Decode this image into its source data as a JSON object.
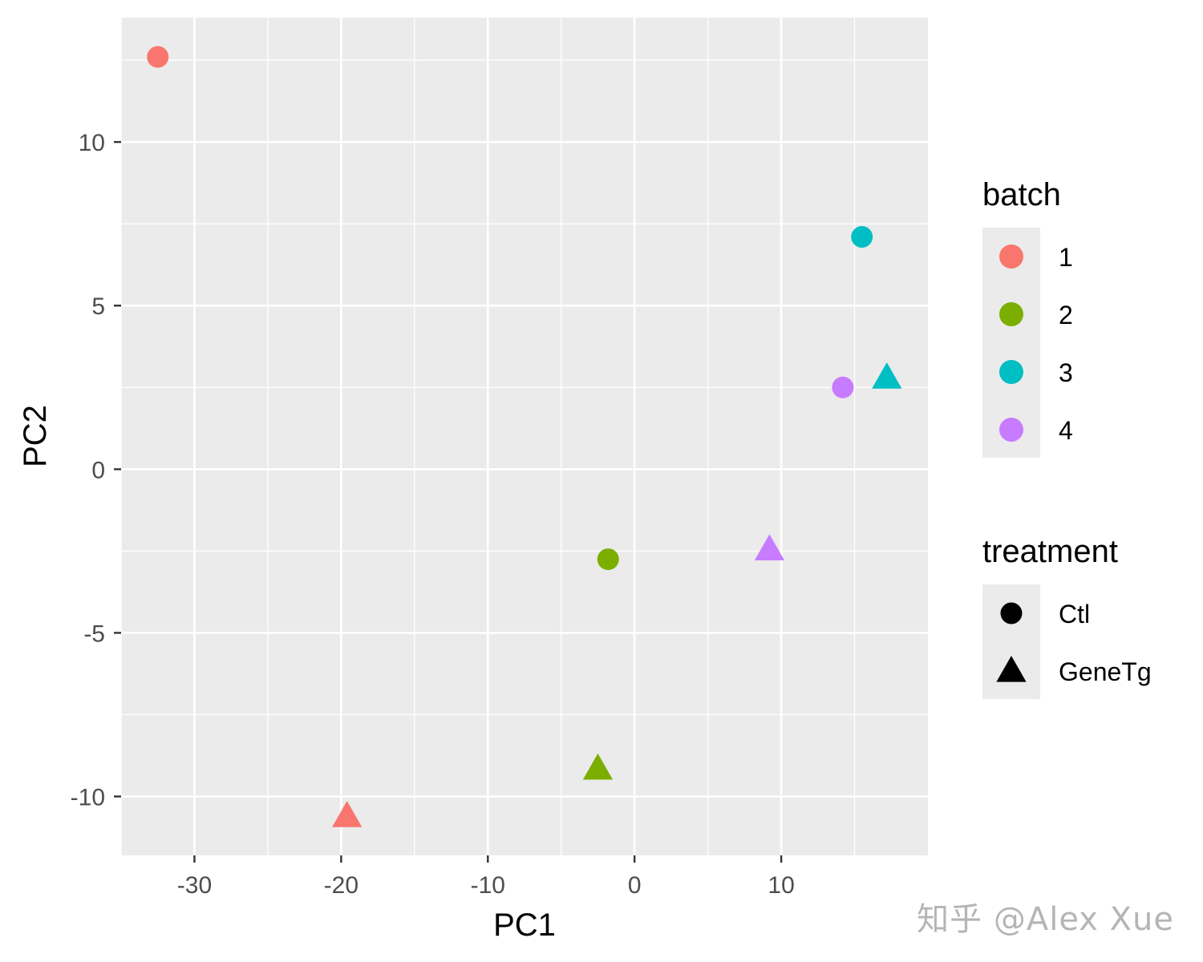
{
  "watermark": "知乎 @Alex Xue",
  "chart_data": {
    "type": "scatter",
    "xlabel": "PC1",
    "ylabel": "PC2",
    "xlim": [
      -35,
      20
    ],
    "ylim": [
      -11.8,
      13.8
    ],
    "x_ticks": [
      -30,
      -20,
      -10,
      0,
      10
    ],
    "y_ticks": [
      -10,
      -5,
      0,
      5,
      10
    ],
    "grid": true,
    "background": "#EBEBEB",
    "points": [
      {
        "x": -32.5,
        "y": 12.6,
        "batch": "1",
        "treatment": "Ctl"
      },
      {
        "x": -19.6,
        "y": -10.6,
        "batch": "1",
        "treatment": "GeneTg"
      },
      {
        "x": -1.8,
        "y": -2.75,
        "batch": "2",
        "treatment": "Ctl"
      },
      {
        "x": -2.5,
        "y": -9.15,
        "batch": "2",
        "treatment": "GeneTg"
      },
      {
        "x": 15.5,
        "y": 7.1,
        "batch": "3",
        "treatment": "Ctl"
      },
      {
        "x": 17.2,
        "y": 2.8,
        "batch": "3",
        "treatment": "GeneTg"
      },
      {
        "x": 14.2,
        "y": 2.5,
        "batch": "4",
        "treatment": "Ctl"
      },
      {
        "x": 9.2,
        "y": -2.45,
        "batch": "4",
        "treatment": "GeneTg"
      }
    ],
    "legend": {
      "placement": "right",
      "color": {
        "title": "batch",
        "entries": [
          {
            "label": "1",
            "color": "#F8766D"
          },
          {
            "label": "2",
            "color": "#7CAE00"
          },
          {
            "label": "3",
            "color": "#00BFC4"
          },
          {
            "label": "4",
            "color": "#C77CFF"
          }
        ]
      },
      "shape": {
        "title": "treatment",
        "entries": [
          {
            "label": "Ctl",
            "shape": "circle"
          },
          {
            "label": "GeneTg",
            "shape": "triangle"
          }
        ]
      }
    }
  }
}
